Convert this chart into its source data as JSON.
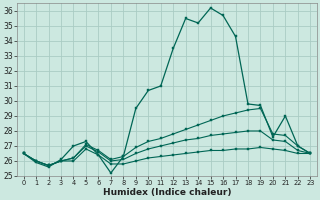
{
  "xlabel": "Humidex (Indice chaleur)",
  "bg_color": "#cce8e0",
  "grid_color": "#aaccC4",
  "line_color": "#006655",
  "xlim": [
    -0.5,
    23.5
  ],
  "ylim": [
    25,
    36.5
  ],
  "yticks": [
    25,
    26,
    27,
    28,
    29,
    30,
    31,
    32,
    33,
    34,
    35,
    36
  ],
  "xticks": [
    0,
    1,
    2,
    3,
    4,
    5,
    6,
    7,
    8,
    9,
    10,
    11,
    12,
    13,
    14,
    15,
    16,
    17,
    18,
    19,
    20,
    21,
    22,
    23
  ],
  "series": [
    [
      26.5,
      25.9,
      25.6,
      26.1,
      27.0,
      27.3,
      26.4,
      25.2,
      26.3,
      29.5,
      30.7,
      31.0,
      33.5,
      35.5,
      35.2,
      36.2,
      35.7,
      34.3,
      29.8,
      29.7,
      27.6,
      29.0,
      27.0,
      26.5
    ],
    [
      26.5,
      26.0,
      25.7,
      26.0,
      26.2,
      27.1,
      26.7,
      26.1,
      26.3,
      26.9,
      27.3,
      27.5,
      27.8,
      28.1,
      28.4,
      28.7,
      29.0,
      29.2,
      29.4,
      29.5,
      27.8,
      27.7,
      27.0,
      26.5
    ],
    [
      26.5,
      26.0,
      25.7,
      26.0,
      26.2,
      27.0,
      26.6,
      26.0,
      26.1,
      26.5,
      26.8,
      27.0,
      27.2,
      27.4,
      27.5,
      27.7,
      27.8,
      27.9,
      28.0,
      28.0,
      27.4,
      27.3,
      26.7,
      26.5
    ],
    [
      26.5,
      26.0,
      25.7,
      26.0,
      26.0,
      26.8,
      26.4,
      25.8,
      25.8,
      26.0,
      26.2,
      26.3,
      26.4,
      26.5,
      26.6,
      26.7,
      26.7,
      26.8,
      26.8,
      26.9,
      26.8,
      26.7,
      26.5,
      26.5
    ]
  ]
}
